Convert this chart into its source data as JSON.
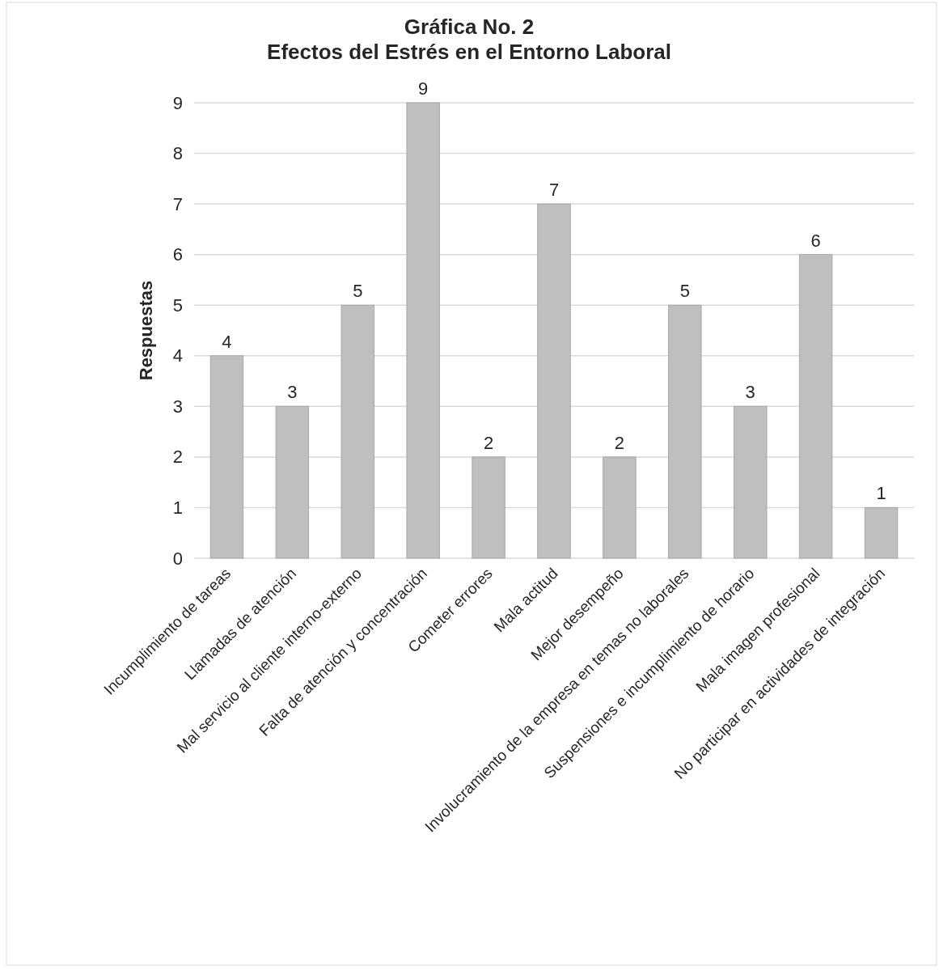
{
  "chart_data": {
    "type": "bar",
    "title": "Gráfica No. 2\nEfectos del Estrés en el Entorno Laboral",
    "ylabel": "Respuestas",
    "categories": [
      "Incumplimiento de tareas",
      "Llamadas de atención",
      "Mal servicio al cliente interno-externo",
      "Falta de atención y concentración",
      "Cometer errores",
      "Mala actitud",
      "Mejor desempeño",
      "Involucramiento de la empresa en temas no laborales",
      "Suspensiones e incumplimiento de horario",
      "Mala imagen profesional",
      "No participar en actividades de integración"
    ],
    "values": [
      4,
      3,
      5,
      9,
      2,
      7,
      2,
      5,
      3,
      6,
      1
    ],
    "color": "#bfbfbf",
    "ylim": [
      0,
      9
    ],
    "yticks": [
      0,
      1,
      2,
      3,
      4,
      5,
      6,
      7,
      8,
      9
    ],
    "grid": "y",
    "data_labels": true
  }
}
